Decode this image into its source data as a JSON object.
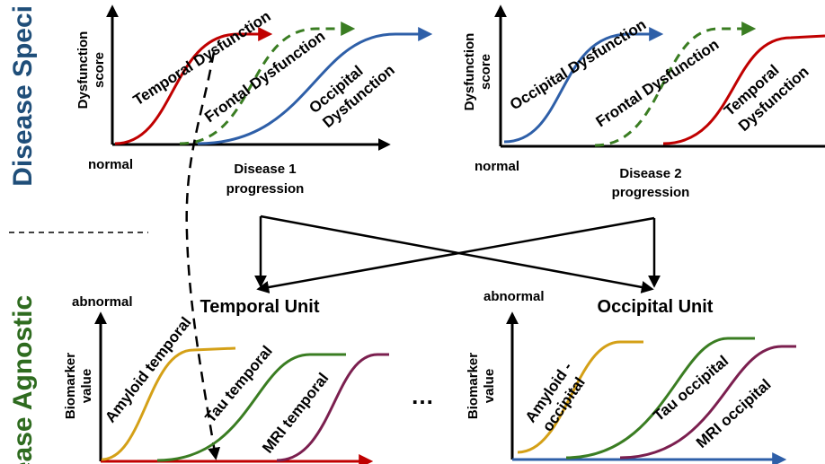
{
  "side_labels": {
    "top": "Disease Speci",
    "bottom": "ease Agnostic"
  },
  "top_left": {
    "ylabel_1": "Dysfunction",
    "ylabel_2": "score",
    "origin": "normal",
    "xlabel_1": "Disease 1",
    "xlabel_2": "progression",
    "curves": [
      {
        "label": "Temporal Dysfunction",
        "color": "#c00000",
        "style": "solid"
      },
      {
        "label": "Frontal Dysfunction",
        "color": "#3a7d22",
        "style": "dashed"
      },
      {
        "label_1": "Occipital",
        "label_2": "Dysfunction",
        "color": "#2e5fa8",
        "style": "solid"
      }
    ]
  },
  "top_right": {
    "ylabel_1": "Dysfunction",
    "ylabel_2": "score",
    "origin": "normal",
    "xlabel_1": "Disease 2",
    "xlabel_2": "progression",
    "curves": [
      {
        "label": "Occipital Dysfunction",
        "color": "#2e5fa8",
        "style": "solid"
      },
      {
        "label": "Frontal Dysfunction",
        "color": "#3a7d22",
        "style": "dashed"
      },
      {
        "label_1": "Temporal",
        "label_2": "Dysfunction",
        "color": "#c00000",
        "style": "solid"
      }
    ]
  },
  "units": {
    "left": "Temporal Unit",
    "right": "Occipital Unit"
  },
  "bottom_left": {
    "ytop": "abnormal",
    "ylabel_1": "Biomarker",
    "ylabel_2": "value",
    "curves": [
      {
        "label": "Amyloid temporal",
        "color": "#d4a017"
      },
      {
        "label": "Tau temporal",
        "color": "#3a7d22"
      },
      {
        "label": "MRI temporal",
        "color": "#7b1f4f"
      }
    ]
  },
  "ellipsis": "…",
  "bottom_right": {
    "ytop": "abnormal",
    "ylabel_1": "Biomarker",
    "ylabel_2": "value",
    "curves": [
      {
        "label_1": "Amyloid -",
        "label_2": "occipital",
        "color": "#d4a017"
      },
      {
        "label": "Tau occipital",
        "color": "#3a7d22"
      },
      {
        "label": "MRI occipital",
        "color": "#7b1f4f"
      }
    ]
  }
}
